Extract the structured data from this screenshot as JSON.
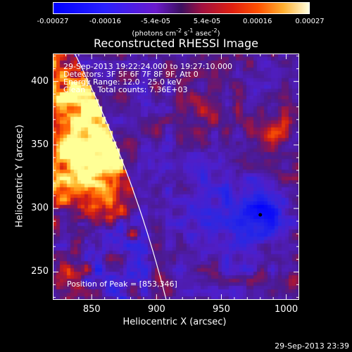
{
  "colorbar": {
    "ticks": [
      "-0.00027",
      "-0.00016",
      "-5.4e-05",
      "5.4e-05",
      "0.00016",
      "0.00027"
    ],
    "tick_values": [
      -0.00027,
      -0.00016,
      -5.4e-05,
      5.4e-05,
      0.00016,
      0.00027
    ],
    "units_prefix": "(photons cm",
    "units_exp1": "-2",
    "units_mid": " s",
    "units_exp2": "-1",
    "units_mid2": " asec",
    "units_exp3": "-2",
    "units_suffix": ")"
  },
  "chart_data": {
    "type": "heatmap",
    "title": "Reconstructed RHESSI Image",
    "xlabel": "Heliocentric X (arcsec)",
    "ylabel": "Heliocentric Y (arcsec)",
    "xlim": [
      820,
      1010
    ],
    "ylim": [
      228,
      422
    ],
    "x_ticks": [
      "850",
      "900",
      "950",
      "1000"
    ],
    "x_tick_values": [
      850,
      900,
      950,
      1000
    ],
    "y_ticks": [
      "250",
      "300",
      "350",
      "400"
    ],
    "y_tick_values": [
      250,
      300,
      350,
      400
    ],
    "color_range": [
      -0.00027,
      0.00027
    ],
    "peak": {
      "x": 853,
      "y": 346
    },
    "marker": {
      "x": 980,
      "y": 295
    },
    "info_lines": [
      "29-Sep-2013 19:22:24.000 to 19:27:10.000",
      "Detectors: 3F 5F 6F 7F 8F 9F, Att 0",
      "Energy Range: 12.0 - 25.0 keV",
      "Clean     Total counts: 7.36E+03"
    ],
    "peak_label": "Position of Peak = [853,346]"
  },
  "timestamp": "29-Sep-2013 23:39",
  "colors": {
    "background": "#000000",
    "foreground": "#ffffff",
    "limb": "#ffffff",
    "map_negative": "#2040ff",
    "map_zero": "#4b1a8c",
    "map_positive": "#ff4000",
    "map_peak": "#ffff60"
  }
}
